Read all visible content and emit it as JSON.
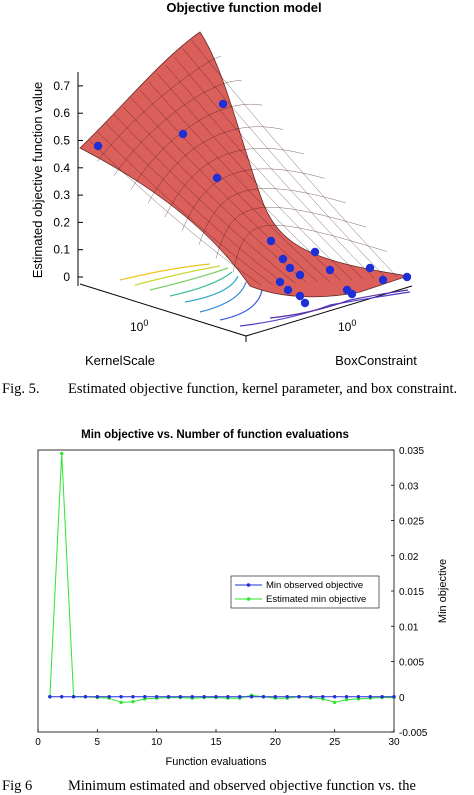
{
  "figure5": {
    "title": "Objective function model",
    "zlabel": "Estimated objective function value",
    "xlabel": "KernelScale",
    "ylabel": "BoxConstraint",
    "z_ticks": [
      "0",
      "0.1",
      "0.2",
      "0.3",
      "0.4",
      "0.5",
      "0.6",
      "0.7"
    ],
    "x_tick": "10",
    "x_tick_exp": "0",
    "y_tick": "10",
    "y_tick_exp": "0",
    "caption_label": "Fig. 5.",
    "caption_text": "Estimated objective function, kernel parameter, and box constraint.",
    "surface_color": "#d9534f",
    "point_color": "#1f2fd6"
  },
  "figure6": {
    "caption_label": "Fig 6",
    "caption_text": "Minimum estimated and observed objective function vs. the"
  },
  "chart_data": [
    {
      "type": "surface",
      "title": "Objective function model",
      "xlabel": "KernelScale",
      "ylabel": "BoxConstraint",
      "zlabel": "Estimated objective function value",
      "zlim": [
        0,
        0.7
      ],
      "observed_points_count": 19
    },
    {
      "type": "line",
      "title": "Min objective vs. Number of function evaluations",
      "xlabel": "Function evaluations",
      "ylabel": "Min objective",
      "xlim": [
        0,
        30
      ],
      "ylim": [
        -0.005,
        0.035
      ],
      "x_ticks": [
        0,
        5,
        10,
        15,
        20,
        25,
        30
      ],
      "y_ticks": [
        "-0.005",
        "0",
        "0.005",
        "0.01",
        "0.015",
        "0.02",
        "0.025",
        "0.03",
        "0.035"
      ],
      "legend_position": "right",
      "x": [
        1,
        2,
        3,
        4,
        5,
        6,
        7,
        8,
        9,
        10,
        11,
        12,
        13,
        14,
        15,
        16,
        17,
        18,
        19,
        20,
        21,
        22,
        23,
        24,
        25,
        26,
        27,
        28,
        29,
        30
      ],
      "series": [
        {
          "name": "Min observed objective",
          "color": "#1f2fd6",
          "values": [
            0,
            0,
            0,
            0,
            0,
            0,
            0,
            0,
            0,
            0,
            0,
            0,
            0,
            0,
            0,
            0,
            0,
            0,
            0,
            0,
            0,
            0,
            0,
            0,
            0,
            0,
            0,
            0,
            0,
            0
          ]
        },
        {
          "name": "Estimated min objective",
          "color": "#2ee62e",
          "values": [
            0,
            0.0345,
            0,
            0,
            -0.0001,
            -0.0002,
            -0.0008,
            -0.0007,
            -0.0003,
            -0.0002,
            -0.0001,
            -0.0001,
            -0.0002,
            -0.0001,
            -0.0001,
            -0.0002,
            -0.0002,
            0.0002,
            0,
            -0.0002,
            -0.0002,
            0,
            -0.0001,
            -0.0003,
            -0.0008,
            -0.0004,
            -0.0003,
            -0.0002,
            -0.0001,
            -0.0001
          ]
        }
      ]
    }
  ]
}
